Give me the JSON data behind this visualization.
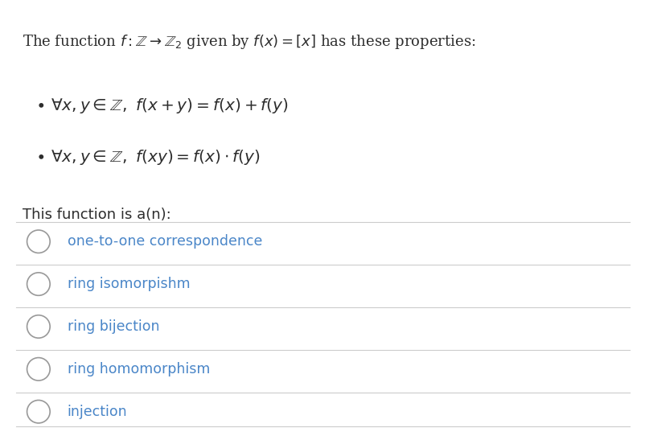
{
  "bg_color": "#ffffff",
  "text_color": "#2d2d2d",
  "option_color": "#4a86c8",
  "line_color": "#cccccc",
  "subtitle": "This function is a(n):",
  "options": [
    "one-to-one correspondence",
    "ring isomorpishm",
    "ring bijection",
    "ring homomorphism",
    "injection"
  ],
  "figsize": [
    8.03,
    5.37
  ],
  "dpi": 100
}
